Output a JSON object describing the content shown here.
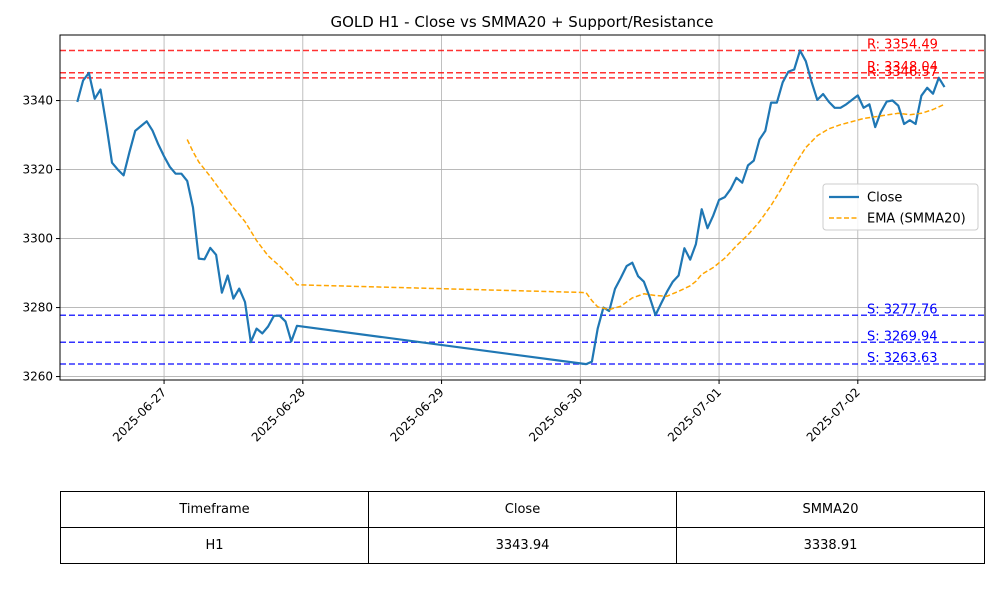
{
  "chart_data": {
    "type": "line",
    "title": "GOLD H1 - Close vs SMMA20 + Support/Resistance",
    "xlabel": "",
    "ylabel": "",
    "xlim": [
      "2025-06-26 06:00",
      "2025-07-02 22:00"
    ],
    "ylim": [
      3259,
      3359
    ],
    "x_ticks": [
      "2025-06-27",
      "2025-06-28",
      "2025-06-29",
      "2025-06-30",
      "2025-07-01",
      "2025-07-02"
    ],
    "y_ticks": [
      3260,
      3280,
      3300,
      3320,
      3340
    ],
    "grid": true,
    "legend_position": "center-right",
    "series": [
      {
        "name": "Close",
        "color": "#1f77b4",
        "style": "solid",
        "points": [
          [
            "2025-06-26 09:00",
            3339.6
          ],
          [
            "2025-06-26 10:00",
            3345.8
          ],
          [
            "2025-06-26 11:00",
            3348.0
          ],
          [
            "2025-06-26 12:00",
            3340.5
          ],
          [
            "2025-06-26 13:00",
            3343.2
          ],
          [
            "2025-06-26 14:00",
            3333.0
          ],
          [
            "2025-06-26 15:00",
            3322.0
          ],
          [
            "2025-06-26 16:00",
            3320.0
          ],
          [
            "2025-06-26 17:00",
            3318.3
          ],
          [
            "2025-06-26 18:00",
            3325.0
          ],
          [
            "2025-06-26 19:00",
            3331.2
          ],
          [
            "2025-06-26 20:00",
            3332.6
          ],
          [
            "2025-06-26 21:00",
            3334.0
          ],
          [
            "2025-06-26 22:00",
            3331.3
          ],
          [
            "2025-06-26 23:00",
            3327.3
          ],
          [
            "2025-06-27 00:00",
            3323.8
          ],
          [
            "2025-06-27 01:00",
            3320.8
          ],
          [
            "2025-06-27 02:00",
            3318.8
          ],
          [
            "2025-06-27 03:00",
            3318.8
          ],
          [
            "2025-06-27 04:00",
            3316.7
          ],
          [
            "2025-06-27 05:00",
            3309.0
          ],
          [
            "2025-06-27 06:00",
            3294.2
          ],
          [
            "2025-06-27 07:00",
            3294.0
          ],
          [
            "2025-06-27 08:00",
            3297.3
          ],
          [
            "2025-06-27 09:00",
            3295.3
          ],
          [
            "2025-06-27 10:00",
            3284.3
          ],
          [
            "2025-06-27 11:00",
            3289.3
          ],
          [
            "2025-06-27 12:00",
            3282.6
          ],
          [
            "2025-06-27 13:00",
            3285.5
          ],
          [
            "2025-06-27 14:00",
            3281.6
          ],
          [
            "2025-06-27 15:00",
            3270.0
          ],
          [
            "2025-06-27 16:00",
            3273.9
          ],
          [
            "2025-06-27 17:00",
            3272.5
          ],
          [
            "2025-06-27 18:00",
            3274.5
          ],
          [
            "2025-06-27 19:00",
            3277.6
          ],
          [
            "2025-06-27 20:00",
            3277.6
          ],
          [
            "2025-06-27 21:00",
            3276.0
          ],
          [
            "2025-06-27 22:00",
            3270.2
          ],
          [
            "2025-06-27 23:00",
            3274.7
          ],
          [
            "2025-06-30 00:00",
            3263.8
          ],
          [
            "2025-06-30 01:00",
            3263.6
          ],
          [
            "2025-06-30 02:00",
            3264.3
          ],
          [
            "2025-06-30 03:00",
            3273.9
          ],
          [
            "2025-06-30 04:00",
            3280.0
          ],
          [
            "2025-06-30 05:00",
            3279.0
          ],
          [
            "2025-06-30 06:00",
            3285.4
          ],
          [
            "2025-06-30 07:00",
            3288.6
          ],
          [
            "2025-06-30 08:00",
            3292.0
          ],
          [
            "2025-06-30 09:00",
            3293.0
          ],
          [
            "2025-06-30 10:00",
            3289.1
          ],
          [
            "2025-06-30 11:00",
            3287.5
          ],
          [
            "2025-06-30 12:00",
            3283.0
          ],
          [
            "2025-06-30 13:00",
            3277.8
          ],
          [
            "2025-06-30 14:00",
            3281.3
          ],
          [
            "2025-06-30 15:00",
            3284.6
          ],
          [
            "2025-06-30 16:00",
            3287.5
          ],
          [
            "2025-06-30 17:00",
            3289.3
          ],
          [
            "2025-06-30 18:00",
            3297.2
          ],
          [
            "2025-06-30 19:00",
            3293.9
          ],
          [
            "2025-06-30 20:00",
            3298.4
          ],
          [
            "2025-06-30 21:00",
            3308.5
          ],
          [
            "2025-06-30 22:00",
            3303.0
          ],
          [
            "2025-06-30 23:00",
            3306.7
          ],
          [
            "2025-07-01 00:00",
            3311.2
          ],
          [
            "2025-07-01 01:00",
            3312.0
          ],
          [
            "2025-07-01 02:00",
            3314.3
          ],
          [
            "2025-07-01 03:00",
            3317.6
          ],
          [
            "2025-07-01 04:00",
            3316.2
          ],
          [
            "2025-07-01 05:00",
            3321.2
          ],
          [
            "2025-07-01 06:00",
            3322.6
          ],
          [
            "2025-07-01 07:00",
            3328.7
          ],
          [
            "2025-07-01 08:00",
            3331.2
          ],
          [
            "2025-07-01 09:00",
            3339.4
          ],
          [
            "2025-07-01 10:00",
            3339.4
          ],
          [
            "2025-07-01 11:00",
            3345.3
          ],
          [
            "2025-07-01 12:00",
            3348.4
          ],
          [
            "2025-07-01 13:00",
            3349.0
          ],
          [
            "2025-07-01 14:00",
            3354.5
          ],
          [
            "2025-07-01 15:00",
            3351.4
          ],
          [
            "2025-07-01 16:00",
            3345.4
          ],
          [
            "2025-07-01 17:00",
            3340.2
          ],
          [
            "2025-07-01 18:00",
            3341.9
          ],
          [
            "2025-07-01 19:00",
            3339.6
          ],
          [
            "2025-07-01 20:00",
            3337.9
          ],
          [
            "2025-07-01 21:00",
            3337.9
          ],
          [
            "2025-07-01 22:00",
            3338.9
          ],
          [
            "2025-07-01 23:00",
            3340.2
          ],
          [
            "2025-07-02 00:00",
            3341.5
          ],
          [
            "2025-07-02 01:00",
            3337.9
          ],
          [
            "2025-07-02 02:00",
            3338.9
          ],
          [
            "2025-07-02 03:00",
            3332.3
          ],
          [
            "2025-07-02 04:00",
            3336.7
          ],
          [
            "2025-07-02 05:00",
            3339.7
          ],
          [
            "2025-07-02 06:00",
            3340.0
          ],
          [
            "2025-07-02 07:00",
            3338.5
          ],
          [
            "2025-07-02 08:00",
            3333.2
          ],
          [
            "2025-07-02 09:00",
            3334.3
          ],
          [
            "2025-07-02 10:00",
            3333.2
          ],
          [
            "2025-07-02 11:00",
            3341.4
          ],
          [
            "2025-07-02 12:00",
            3343.7
          ],
          [
            "2025-07-02 13:00",
            3342.0
          ],
          [
            "2025-07-02 14:00",
            3346.6
          ],
          [
            "2025-07-02 15:00",
            3343.9
          ]
        ]
      },
      {
        "name": "EMA (SMMA20)",
        "color": "#ffa500",
        "style": "dashed",
        "points": [
          [
            "2025-06-27 04:00",
            3328.7
          ],
          [
            "2025-06-27 05:00",
            3325.2
          ],
          [
            "2025-06-27 06:00",
            3322.2
          ],
          [
            "2025-06-27 08:00",
            3318.0
          ],
          [
            "2025-06-27 10:00",
            3313.4
          ],
          [
            "2025-06-27 12:00",
            3308.9
          ],
          [
            "2025-06-27 14:00",
            3304.9
          ],
          [
            "2025-06-27 16:00",
            3299.4
          ],
          [
            "2025-06-27 18:00",
            3295.0
          ],
          [
            "2025-06-27 20:00",
            3292.0
          ],
          [
            "2025-06-27 22:00",
            3288.6
          ],
          [
            "2025-06-27 23:00",
            3286.6
          ],
          [
            "2025-06-30 00:00",
            3284.4
          ],
          [
            "2025-06-30 01:00",
            3284.3
          ],
          [
            "2025-06-30 02:00",
            3282.0
          ],
          [
            "2025-06-30 03:00",
            3280.2
          ],
          [
            "2025-06-30 05:00",
            3279.4
          ],
          [
            "2025-06-30 07:00",
            3280.4
          ],
          [
            "2025-06-30 09:00",
            3282.8
          ],
          [
            "2025-06-30 11:00",
            3284.0
          ],
          [
            "2025-06-30 13:00",
            3283.5
          ],
          [
            "2025-06-30 15:00",
            3283.3
          ],
          [
            "2025-06-30 17:00",
            3284.7
          ],
          [
            "2025-06-30 19:00",
            3286.3
          ],
          [
            "2025-06-30 20:00",
            3287.6
          ],
          [
            "2025-06-30 21:00",
            3289.6
          ],
          [
            "2025-06-30 23:00",
            3291.6
          ],
          [
            "2025-07-01 01:00",
            3294.3
          ],
          [
            "2025-07-01 03:00",
            3297.9
          ],
          [
            "2025-07-01 05:00",
            3301.1
          ],
          [
            "2025-07-01 07:00",
            3304.9
          ],
          [
            "2025-07-01 09:00",
            3309.6
          ],
          [
            "2025-07-01 11:00",
            3315.1
          ],
          [
            "2025-07-01 13:00",
            3321.1
          ],
          [
            "2025-07-01 15:00",
            3326.4
          ],
          [
            "2025-07-01 17:00",
            3329.8
          ],
          [
            "2025-07-01 19:00",
            3331.8
          ],
          [
            "2025-07-01 21:00",
            3333.0
          ],
          [
            "2025-07-01 23:00",
            3333.9
          ],
          [
            "2025-07-02 01:00",
            3334.8
          ],
          [
            "2025-07-02 03:00",
            3335.3
          ],
          [
            "2025-07-02 05:00",
            3335.8
          ],
          [
            "2025-07-02 07:00",
            3336.3
          ],
          [
            "2025-07-02 09:00",
            3335.9
          ],
          [
            "2025-07-02 11:00",
            3336.3
          ],
          [
            "2025-07-02 13:00",
            3337.4
          ],
          [
            "2025-07-02 15:00",
            3338.9
          ]
        ]
      }
    ],
    "resistance_levels": [
      {
        "value": 3354.49,
        "label": "R: 3354.49"
      },
      {
        "value": 3348.04,
        "label": "R: 3348.04"
      },
      {
        "value": 3346.57,
        "label": "R: 3346.57"
      }
    ],
    "support_levels": [
      {
        "value": 3277.76,
        "label": "S: 3277.76"
      },
      {
        "value": 3269.94,
        "label": "S: 3269.94"
      },
      {
        "value": 3263.63,
        "label": "S: 3263.63"
      }
    ],
    "resistance_color": "#ff0000",
    "support_color": "#0000ff",
    "grid_color": "#b0b0b0"
  },
  "table": {
    "headers": [
      "Timeframe",
      "Close",
      "SMMA20"
    ],
    "rows": [
      [
        "H1",
        "3343.94",
        "3338.91"
      ]
    ]
  }
}
